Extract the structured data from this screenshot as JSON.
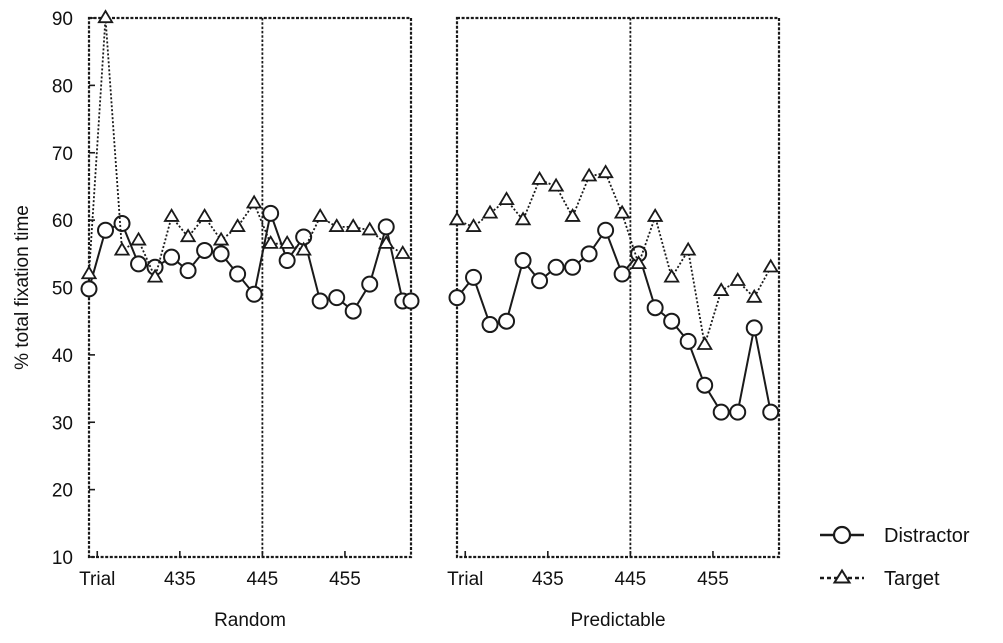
{
  "chart_data": {
    "type": "line",
    "ylabel": "% total fixation time",
    "ylim": [
      10,
      90
    ],
    "yticks": [
      10,
      20,
      30,
      40,
      50,
      60,
      70,
      80,
      90
    ],
    "xticks": [
      {
        "label": "Trial",
        "x": 425
      },
      {
        "label": "435",
        "x": 435
      },
      {
        "label": "445",
        "x": 445
      },
      {
        "label": "455",
        "x": 455
      }
    ],
    "xlim": [
      424,
      463
    ],
    "reference_x": 445,
    "panels": [
      {
        "label": "Random",
        "series": [
          {
            "name": "Distractor",
            "x": [
              424,
              426,
              428,
              430,
              432,
              434,
              436,
              438,
              440,
              442,
              444,
              446,
              448,
              450,
              452,
              454,
              456,
              458,
              460,
              462,
              463
            ],
            "y": [
              49.8,
              58.5,
              59.5,
              53.5,
              53,
              54.5,
              52.5,
              55.5,
              55,
              52,
              49,
              61,
              54,
              57.5,
              48,
              48.5,
              46.5,
              50.5,
              59,
              48,
              48
            ]
          },
          {
            "name": "Target",
            "x": [
              424,
              426,
              428,
              430,
              432,
              434,
              436,
              438,
              440,
              442,
              444,
              446,
              448,
              450,
              452,
              454,
              456,
              458,
              460,
              462
            ],
            "y": [
              52,
              90,
              55.5,
              57,
              51.5,
              60.5,
              57.5,
              60.5,
              57,
              59,
              62.5,
              56.5,
              56.5,
              55.5,
              60.5,
              59,
              59,
              58.5,
              56.5,
              55
            ]
          }
        ]
      },
      {
        "label": "Predictable",
        "series": [
          {
            "name": "Distractor",
            "x": [
              424,
              426,
              428,
              430,
              432,
              434,
              436,
              438,
              440,
              442,
              444,
              446,
              448,
              450,
              452,
              454,
              456,
              458,
              460,
              462
            ],
            "y": [
              48.5,
              51.5,
              44.5,
              45,
              54,
              51,
              53,
              53,
              55,
              58.5,
              52,
              55,
              47,
              45,
              42,
              35.5,
              31.5,
              31.5,
              44,
              31.5
            ]
          },
          {
            "name": "Target",
            "x": [
              424,
              426,
              428,
              430,
              432,
              434,
              436,
              438,
              440,
              442,
              444,
              446,
              448,
              450,
              452,
              454,
              456,
              458,
              460,
              462
            ],
            "y": [
              60,
              59,
              61,
              63,
              60,
              66,
              65,
              60.5,
              66.5,
              67,
              61,
              53.5,
              60.5,
              51.5,
              55.5,
              41.5,
              49.5,
              51,
              48.5,
              53
            ]
          }
        ]
      }
    ],
    "legend": {
      "position": "right",
      "entries": [
        {
          "name": "Distractor",
          "marker": "circle",
          "line": "solid"
        },
        {
          "name": "Target",
          "marker": "triangle",
          "line": "dotted"
        }
      ]
    },
    "grid": false
  }
}
